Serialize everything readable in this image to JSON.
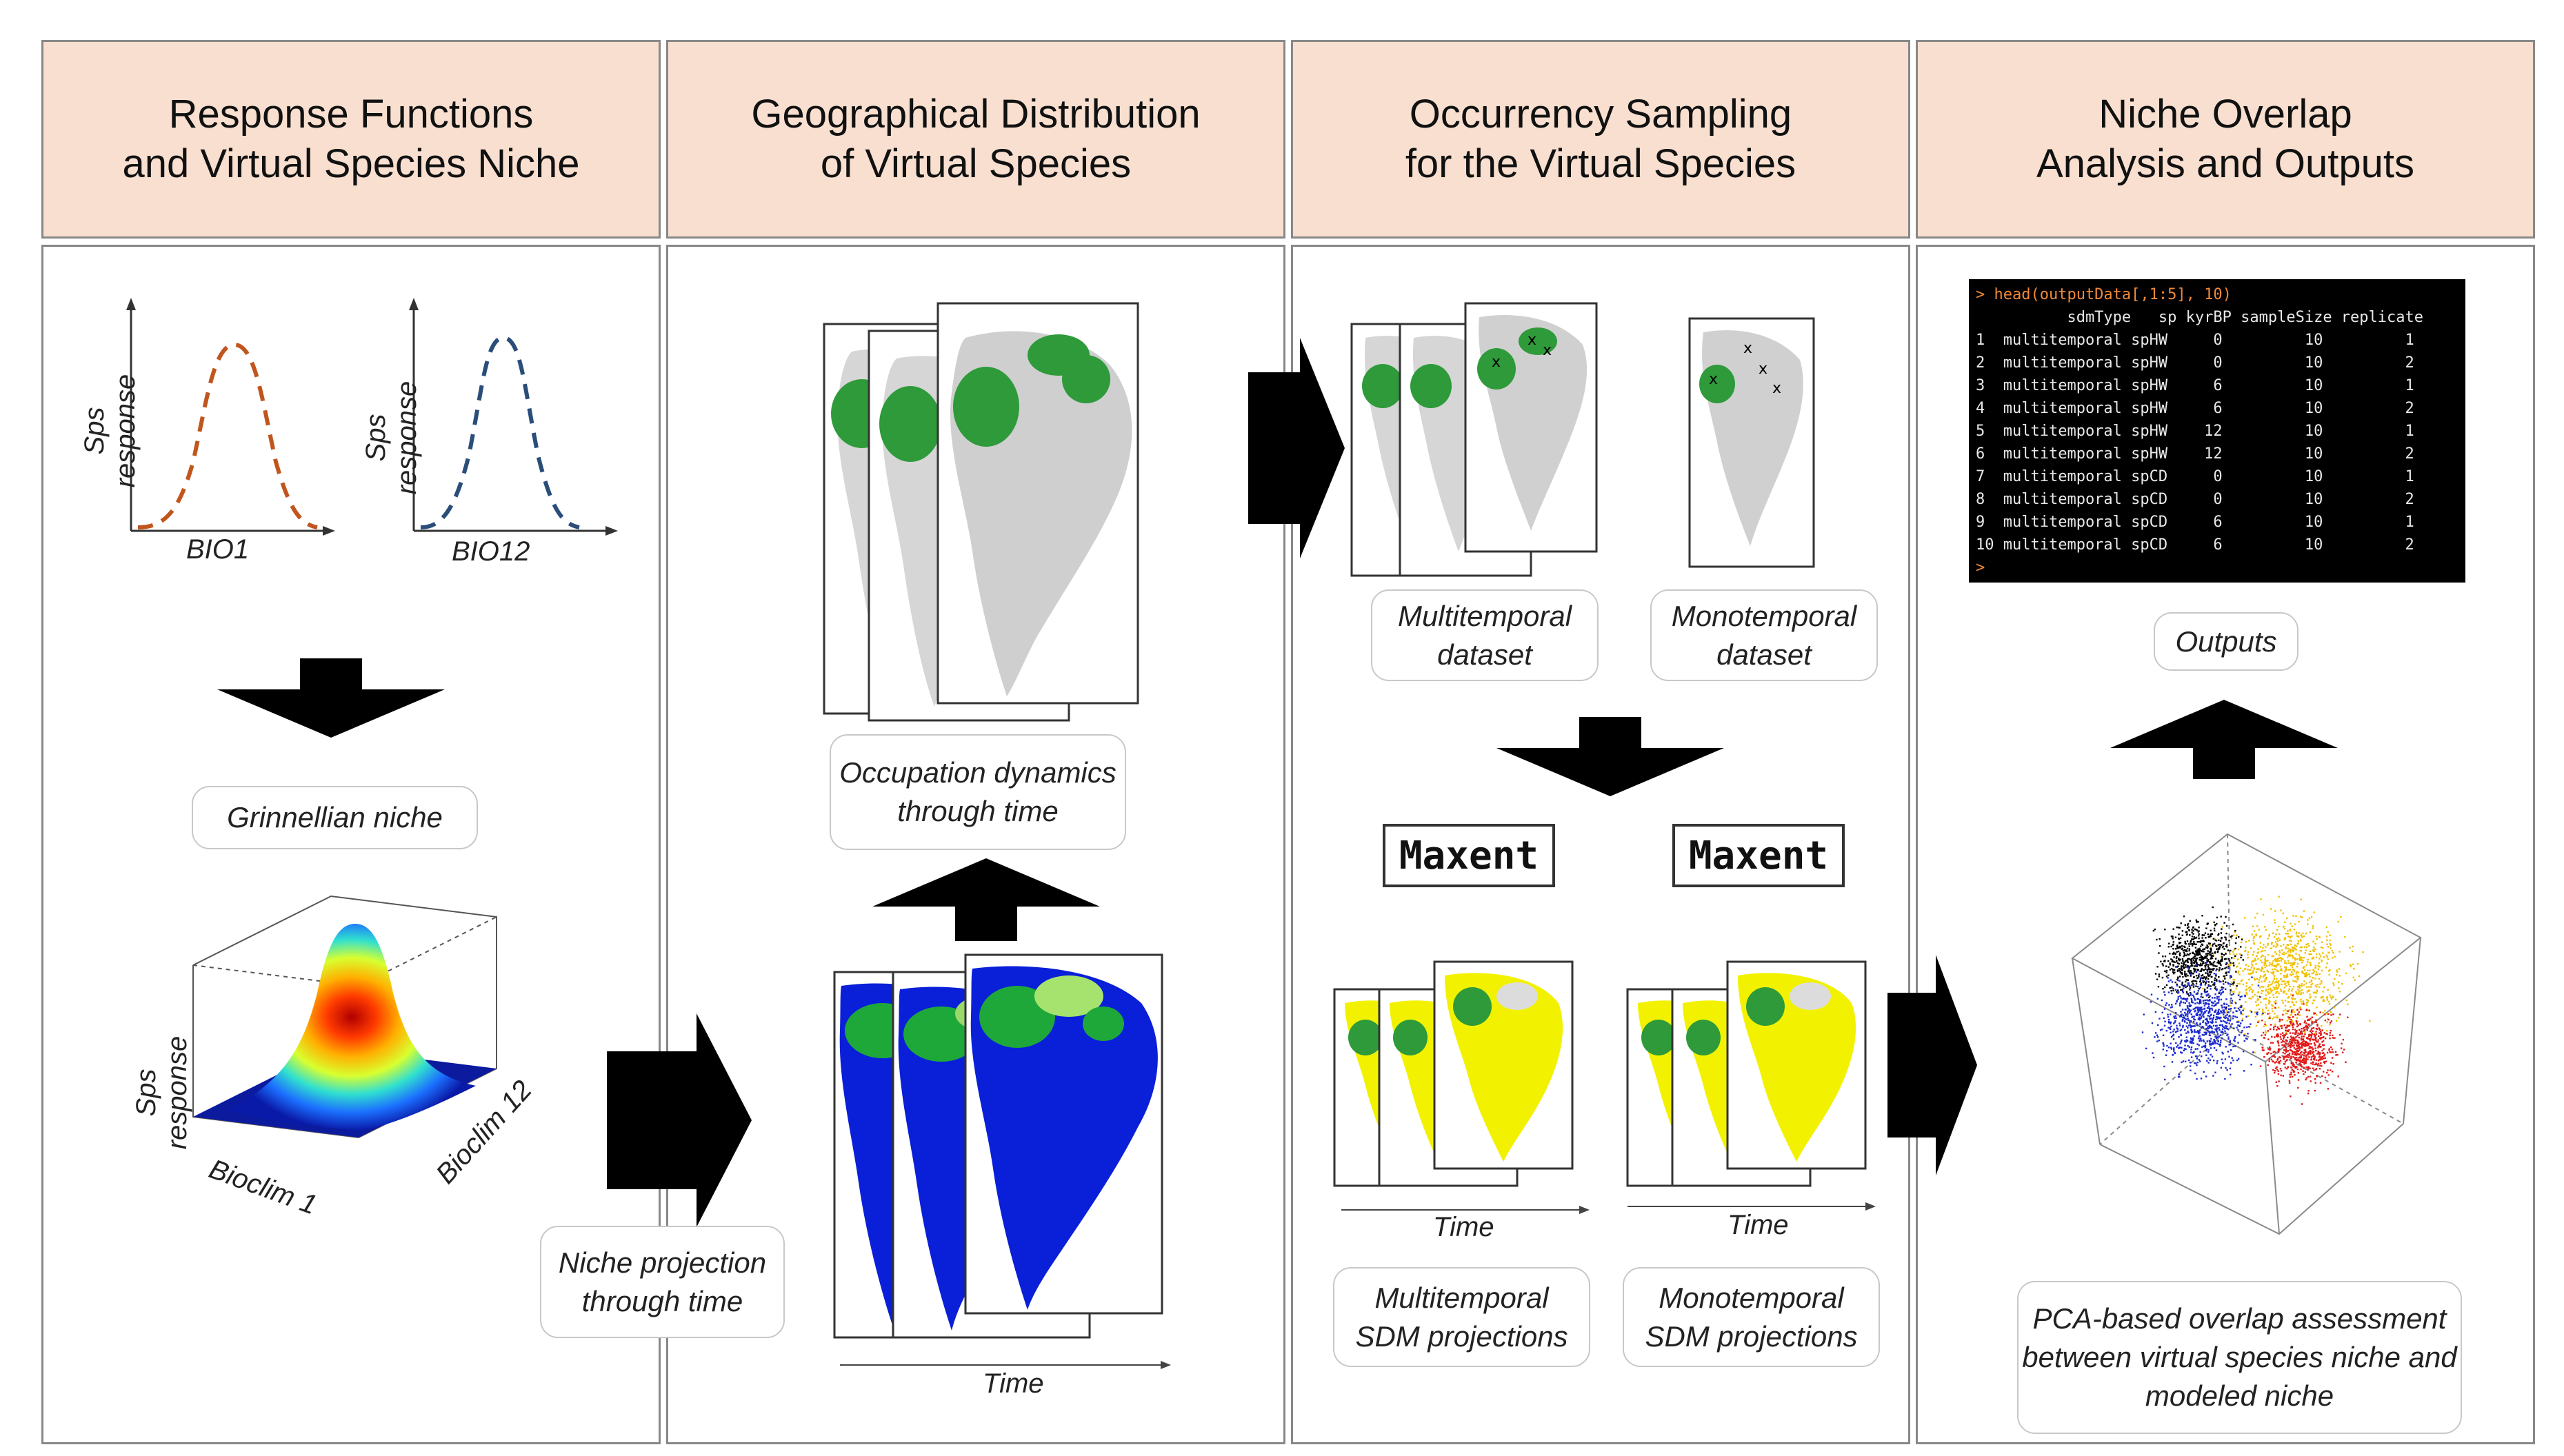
{
  "headers": [
    {
      "title": "Response Functions\nand Virtual Species Niche"
    },
    {
      "title": "Geographical Distribution\nof Virtual Species"
    },
    {
      "title": "Occurrency Sampling\nfor the Virtual Species"
    },
    {
      "title": "Niche Overlap\nAnalysis and Outputs"
    }
  ],
  "panel1": {
    "curve1": {
      "ylabel": "Sps response",
      "xlabel": "BIO1",
      "color": "#c0561e"
    },
    "curve2": {
      "ylabel": "Sps response",
      "xlabel": "BIO12",
      "color": "#2a4d7a"
    },
    "niche_label": "Grinnellian niche",
    "surface": {
      "zlabel": "Sps response",
      "xlabel": "Bioclim 1",
      "ylabel": "Bioclim 12"
    }
  },
  "panel2": {
    "top_label": "Occupation dynamics\nthrough time",
    "time_label": "Time",
    "projection_label": "Niche projection\nthrough time"
  },
  "panel3": {
    "multi_label": "Multitemporal\ndataset",
    "mono_label": "Monotemporal\ndataset",
    "maxent1": "Maxent",
    "maxent2": "Maxent",
    "time1": "Time",
    "time2": "Time",
    "multi_proj_label": "Multitemporal\nSDM projections",
    "mono_proj_label": "Monotemporal\nSDM projections"
  },
  "panel4": {
    "console": {
      "command": "> head(outputData[,1:5], 10)",
      "header": "          sdmType   sp kyrBP sampleSize replicate",
      "rows": [
        "1  multitemporal spHW     0         10         1",
        "2  multitemporal spHW     0         10         2",
        "3  multitemporal spHW     6         10         1",
        "4  multitemporal spHW     6         10         2",
        "5  multitemporal spHW    12         10         1",
        "6  multitemporal spHW    12         10         2",
        "7  multitemporal spCD     0         10         1",
        "8  multitemporal spCD     0         10         2",
        "9  multitemporal spCD     6         10         1",
        "10 multitemporal spCD     6         10         2"
      ],
      "prompt": ">"
    },
    "outputs_label": "Outputs",
    "pca_label": "PCA-based overlap assessment\nbetween virtual species niche and\nmodeled niche"
  },
  "colors": {
    "header_bg": "#f8dfcf",
    "suitable_green": "#2e9a3a",
    "map_grey": "#d4d4d4",
    "map_blue": "#0a1fd8",
    "map_yellow": "#f2f200",
    "pca_black": "#000000",
    "pca_blue": "#1a2ad0",
    "pca_red": "#e01818",
    "pca_yellow": "#f0c000"
  }
}
